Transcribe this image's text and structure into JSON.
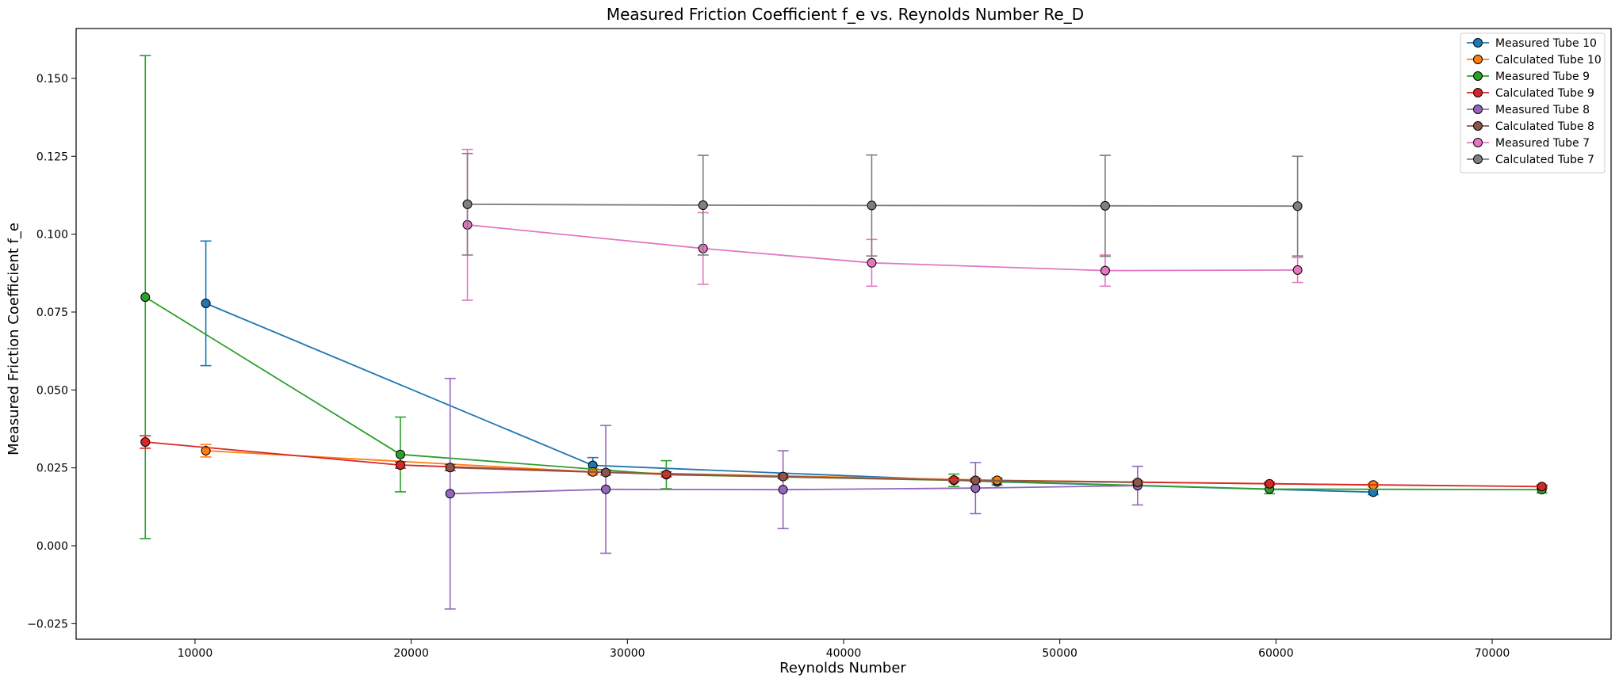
{
  "chart_data": {
    "type": "line",
    "title": "Measured Friction Coefficient f_e vs. Reynolds Number Re_D",
    "xlabel": "Reynolds Number",
    "ylabel": "Measured Friction Coefficient f_e",
    "xlim": [
      4500,
      75500
    ],
    "ylim": [
      -0.03,
      0.166
    ],
    "xticks": [
      10000,
      20000,
      30000,
      40000,
      50000,
      60000,
      70000
    ],
    "xtick_labels": [
      "10000",
      "20000",
      "30000",
      "40000",
      "50000",
      "60000",
      "70000"
    ],
    "yticks": [
      -0.025,
      0.0,
      0.025,
      0.05,
      0.075,
      0.1,
      0.125,
      0.15
    ],
    "ytick_labels": [
      "−0.025",
      "0.000",
      "0.025",
      "0.050",
      "0.075",
      "0.100",
      "0.125",
      "0.150"
    ],
    "grid": false,
    "legend_position": "top-right",
    "series": [
      {
        "name": "Measured Tube 10",
        "color": "#1f77b4",
        "x": [
          10500,
          28400,
          47100,
          64500
        ],
        "y": [
          0.0778,
          0.0258,
          0.0205,
          0.0172
        ],
        "err": [
          0.02,
          0.0025,
          0.001,
          0.0008
        ]
      },
      {
        "name": "Calculated Tube 10",
        "color": "#ff7f0e",
        "x": [
          10500,
          28400,
          47100,
          64500
        ],
        "y": [
          0.0305,
          0.0237,
          0.021,
          0.0195
        ],
        "err": [
          0.002,
          0.001,
          0.0008,
          0.0006
        ]
      },
      {
        "name": "Measured Tube 9",
        "color": "#2ca02c",
        "x": [
          7700,
          19500,
          31800,
          45100,
          59700,
          72300
        ],
        "y": [
          0.0798,
          0.0293,
          0.0228,
          0.021,
          0.0182,
          0.018
        ],
        "err": [
          0.0775,
          0.012,
          0.0045,
          0.002,
          0.0015,
          0.001
        ]
      },
      {
        "name": "Calculated Tube 9",
        "color": "#d62728",
        "x": [
          7700,
          19500,
          31800,
          45100,
          59700,
          72300
        ],
        "y": [
          0.0333,
          0.0259,
          0.0229,
          0.0211,
          0.0199,
          0.019
        ],
        "err": [
          0.002,
          0.001,
          0.0008,
          0.0006,
          0.0005,
          0.0005
        ]
      },
      {
        "name": "Measured Tube 8",
        "color": "#9467bd",
        "x": [
          21800,
          29000,
          37200,
          46100,
          53600
        ],
        "y": [
          0.0167,
          0.0181,
          0.018,
          0.0185,
          0.0193
        ],
        "err": [
          0.037,
          0.0205,
          0.0125,
          0.0082,
          0.0062
        ]
      },
      {
        "name": "Calculated Tube 8",
        "color": "#8c564b",
        "x": [
          21800,
          29000,
          37200,
          46100,
          53600
        ],
        "y": [
          0.0251,
          0.0235,
          0.0222,
          0.021,
          0.0203
        ],
        "err": [
          0.001,
          0.0008,
          0.0007,
          0.0006,
          0.0005
        ]
      },
      {
        "name": "Measured Tube 7",
        "color": "#e377c2",
        "x": [
          22600,
          33500,
          41300,
          52100,
          61000
        ],
        "y": [
          0.103,
          0.0954,
          0.0908,
          0.0883,
          0.0885
        ],
        "err": [
          0.0242,
          0.0115,
          0.0075,
          0.005,
          0.004
        ]
      },
      {
        "name": "Calculated Tube 7",
        "color": "#7f7f7f",
        "x": [
          22600,
          33500,
          41300,
          52100,
          61000
        ],
        "y": [
          0.1096,
          0.1093,
          0.1092,
          0.1091,
          0.109
        ],
        "err": [
          0.0163,
          0.016,
          0.0162,
          0.0162,
          0.016
        ]
      }
    ]
  }
}
